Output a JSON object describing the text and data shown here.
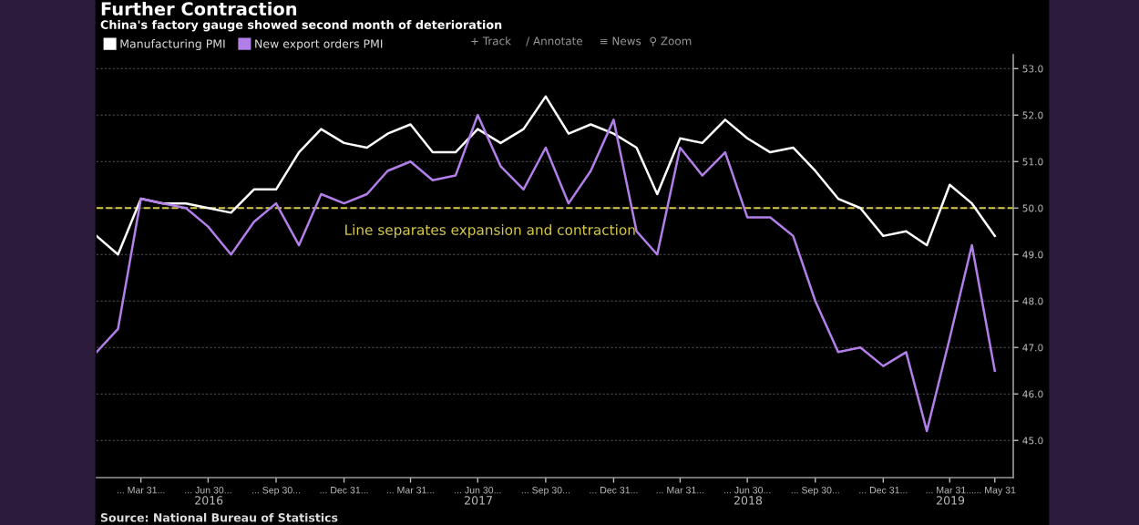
{
  "chart_data": {
    "type": "line",
    "title": "Further Contraction",
    "subtitle": "China's factory gauge showed second month of deterioration",
    "x": [
      "2016-01-31",
      "2016-02-29",
      "2016-03-31",
      "2016-04-30",
      "2016-05-31",
      "2016-06-30",
      "2016-07-31",
      "2016-08-31",
      "2016-09-30",
      "2016-10-31",
      "2016-11-30",
      "2016-12-31",
      "2017-01-31",
      "2017-02-28",
      "2017-03-31",
      "2017-04-30",
      "2017-05-31",
      "2017-06-30",
      "2017-07-31",
      "2017-08-31",
      "2017-09-30",
      "2017-10-31",
      "2017-11-30",
      "2017-12-31",
      "2018-01-31",
      "2018-02-28",
      "2018-03-31",
      "2018-04-30",
      "2018-05-31",
      "2018-06-30",
      "2018-07-31",
      "2018-08-31",
      "2018-09-30",
      "2018-10-31",
      "2018-11-30",
      "2018-12-31",
      "2019-01-31",
      "2019-02-28",
      "2019-03-31",
      "2019-04-30",
      "2019-05-31"
    ],
    "series": [
      {
        "name": "Manufacturing PMI",
        "color": "#ffffff",
        "values": [
          49.4,
          49.0,
          50.2,
          50.1,
          50.1,
          50.0,
          49.9,
          50.4,
          50.4,
          51.2,
          51.7,
          51.4,
          51.3,
          51.6,
          51.8,
          51.2,
          51.2,
          51.7,
          51.4,
          51.7,
          52.4,
          51.6,
          51.8,
          51.6,
          51.3,
          50.3,
          51.5,
          51.4,
          51.9,
          51.5,
          51.2,
          51.3,
          50.8,
          50.2,
          50.0,
          49.4,
          49.5,
          49.2,
          50.5,
          50.1,
          49.4
        ]
      },
      {
        "name": "New export orders PMI",
        "color": "#b27fe8",
        "values": [
          46.9,
          47.4,
          50.2,
          50.1,
          50.0,
          49.6,
          49.0,
          49.7,
          50.1,
          49.2,
          50.3,
          50.1,
          50.3,
          50.8,
          51.0,
          50.6,
          50.7,
          52.0,
          50.9,
          50.4,
          51.3,
          50.1,
          50.8,
          51.9,
          49.5,
          49.0,
          51.3,
          50.7,
          51.2,
          49.8,
          49.8,
          49.4,
          48.0,
          46.9,
          47.0,
          46.6,
          46.9,
          45.2,
          47.2,
          49.2,
          46.5
        ]
      }
    ],
    "xlim": [
      "2016-01-31",
      "2019-06-25"
    ],
    "xticks": [
      {
        "value": "2016-03-31",
        "label": "... Mar 31..."
      },
      {
        "value": "2016-06-30",
        "label": "... Jun 30..."
      },
      {
        "value": "2016-09-30",
        "label": "... Sep 30..."
      },
      {
        "value": "2016-12-31",
        "label": "... Dec 31..."
      },
      {
        "value": "2017-03-31",
        "label": "... Mar 31..."
      },
      {
        "value": "2017-06-30",
        "label": "... Jun 30..."
      },
      {
        "value": "2017-09-30",
        "label": "... Sep 30..."
      },
      {
        "value": "2017-12-31",
        "label": "... Dec 31..."
      },
      {
        "value": "2018-03-31",
        "label": "... Mar 31..."
      },
      {
        "value": "2018-06-30",
        "label": "... Jun 30..."
      },
      {
        "value": "2018-09-30",
        "label": "... Sep 30..."
      },
      {
        "value": "2018-12-31",
        "label": "... Dec 31..."
      },
      {
        "value": "2019-03-31",
        "label": "... Mar 31..."
      },
      {
        "value": "2019-05-31",
        "label": "... May 31"
      }
    ],
    "x2lim": [
      "2016-01-31",
      "2019-06-25"
    ],
    "x2ticks": [
      {
        "value": "2016-07-01",
        "label": "2016"
      },
      {
        "value": "2017-07-01",
        "label": "2017"
      },
      {
        "value": "2018-07-01",
        "label": "2018"
      },
      {
        "value": "2019-04-01",
        "label": "2019"
      }
    ],
    "ylim": [
      44.2,
      53.3
    ],
    "yticks": [
      {
        "value": 45,
        "label": "45.0"
      },
      {
        "value": 46,
        "label": "46.0"
      },
      {
        "value": 47,
        "label": "47.0"
      },
      {
        "value": 48,
        "label": "48.0"
      },
      {
        "value": 49,
        "label": "49.0"
      },
      {
        "value": 50,
        "label": "50.0"
      },
      {
        "value": 51,
        "label": "51.0"
      },
      {
        "value": 52,
        "label": "52.0"
      },
      {
        "value": 53,
        "label": "53.0"
      }
    ],
    "ref_lines": [
      {
        "axis": "y",
        "value": 50,
        "label": "Line separates expansion and contraction",
        "color": "#d8c94a",
        "line_style": "dashed"
      }
    ],
    "annotations": [
      "Source: National Bureau of Statistics",
      "+ Track",
      "∕ Annotate",
      "≡ News",
      "⚲ Zoom"
    ],
    "grid": "y",
    "legend": "top left",
    "line_style": "solid",
    "marker": "none"
  }
}
